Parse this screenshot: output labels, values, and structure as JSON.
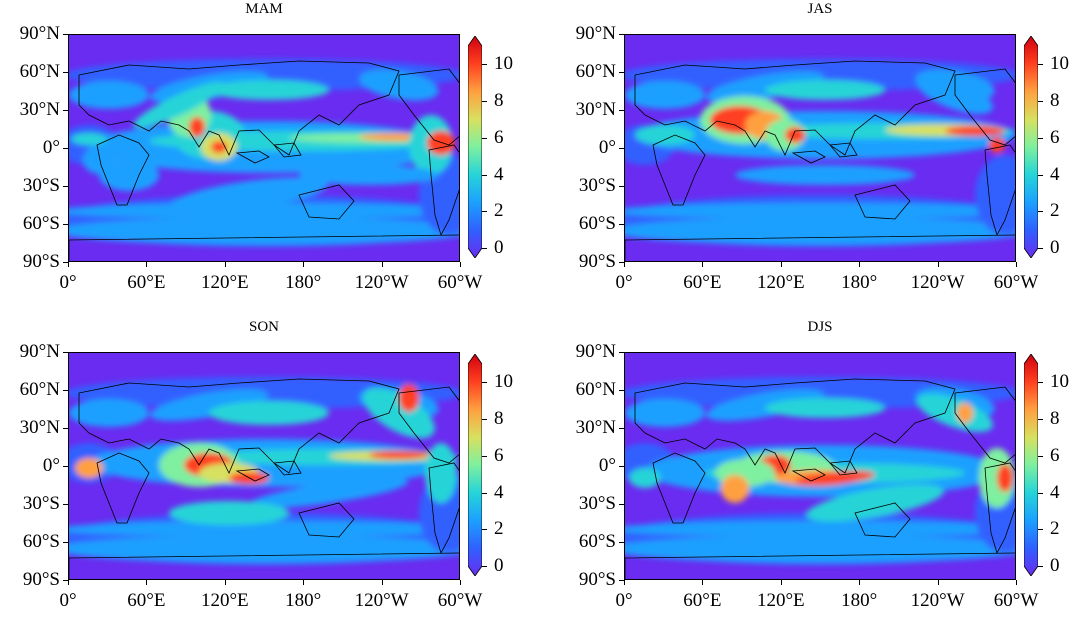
{
  "figure": {
    "lat_ticks": [
      "90°N",
      "60°N",
      "30°N",
      "0°",
      "30°S",
      "60°S",
      "90°S"
    ],
    "lon_ticks": [
      "0°",
      "60°E",
      "120°E",
      "180°",
      "120°W",
      "60°W"
    ],
    "colorbar": {
      "ticks": [
        "0",
        "2",
        "4",
        "6",
        "8",
        "10"
      ],
      "vmin": 0,
      "vmax": 11,
      "extend": "both",
      "colormap": "rainbow",
      "colors": [
        "#6a2cf0",
        "#3060ff",
        "#1ca0ff",
        "#26d4d8",
        "#7ef0a0",
        "#d8e060",
        "#ffa040",
        "#ff4020",
        "#d00010"
      ]
    },
    "panels": [
      {
        "title": "MAM"
      },
      {
        "title": "JAS"
      },
      {
        "title": "SON"
      },
      {
        "title": "DJS"
      }
    ]
  }
}
